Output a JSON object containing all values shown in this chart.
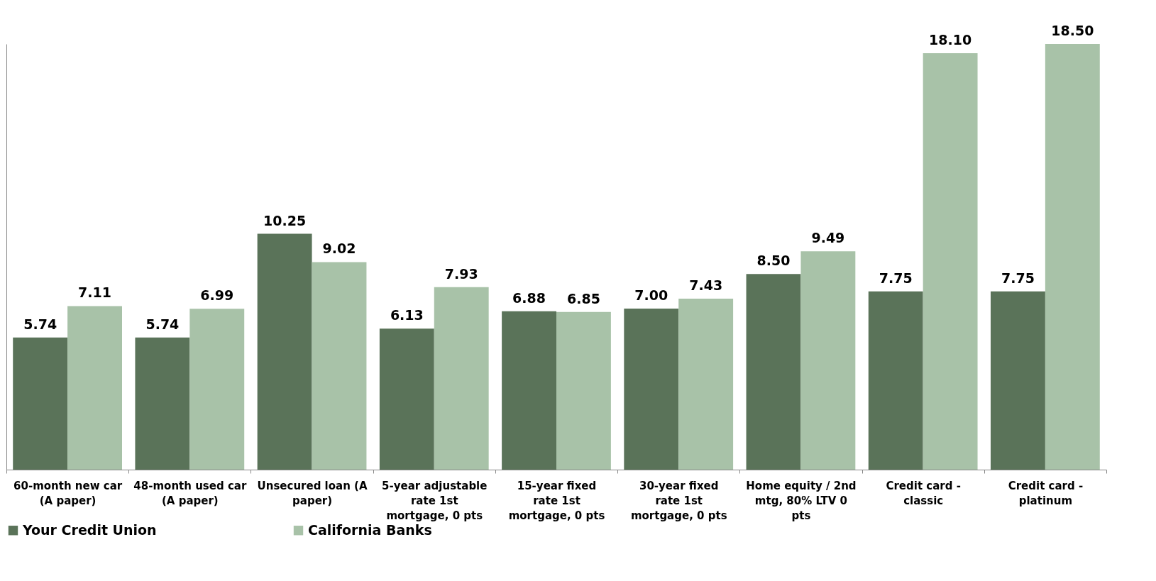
{
  "chart_data": {
    "type": "bar",
    "categories": [
      "60-month new car (A paper)",
      "48-month used car (A paper)",
      "Unsecured loan (A paper)",
      "5-year adjustable rate 1st mortgage, 0 pts",
      "15-year fixed rate 1st mortgage, 0 pts",
      "30-year fixed rate 1st mortgage, 0 pts",
      "Home equity / 2nd mtg, 80% LTV 0 pts",
      "Credit card - classic",
      "Credit card - platinum"
    ],
    "series": [
      {
        "name": "Your Credit Union",
        "color": "#5a7359",
        "values": [
          5.74,
          5.74,
          10.25,
          6.13,
          6.88,
          7.0,
          8.5,
          7.75,
          7.75
        ],
        "value_labels": [
          "5.74",
          "5.74",
          "10.25",
          "6.13",
          "6.88",
          "7.00",
          "8.50",
          "7.75",
          "7.75"
        ]
      },
      {
        "name": "California Banks",
        "color": "#a8c2a8",
        "values": [
          7.11,
          6.99,
          9.02,
          7.93,
          6.85,
          7.43,
          9.49,
          18.1,
          18.5
        ],
        "value_labels": [
          "7.11",
          "6.99",
          "9.02",
          "7.93",
          "6.85",
          "7.43",
          "9.49",
          "18.10",
          "18.50"
        ]
      }
    ],
    "legend": "bottom",
    "grid": false,
    "tick_labels": "x"
  }
}
